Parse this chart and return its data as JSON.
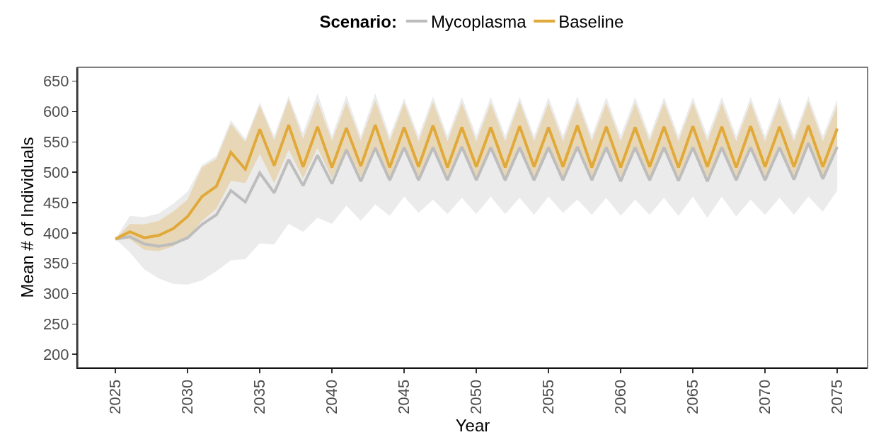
{
  "chart_data": {
    "type": "line",
    "xlabel": "Year",
    "ylabel": "Mean # of Individuals",
    "legend_title": "Scenario:",
    "legend": "top",
    "x": [
      2025,
      2026,
      2027,
      2028,
      2029,
      2030,
      2031,
      2032,
      2033,
      2034,
      2035,
      2036,
      2037,
      2038,
      2039,
      2040,
      2041,
      2042,
      2043,
      2044,
      2045,
      2046,
      2047,
      2048,
      2049,
      2050,
      2051,
      2052,
      2053,
      2054,
      2055,
      2056,
      2057,
      2058,
      2059,
      2060,
      2061,
      2062,
      2063,
      2064,
      2065,
      2066,
      2067,
      2068,
      2069,
      2070,
      2071,
      2072,
      2073,
      2074,
      2075
    ],
    "series": [
      {
        "name": "Baseline",
        "color": "#e0a93a",
        "values": [
          390,
          402,
          392,
          396,
          407,
          427,
          460,
          477,
          533,
          505,
          571,
          511,
          578,
          509,
          575,
          508,
          573,
          510,
          578,
          508,
          574,
          509,
          577,
          508,
          574,
          509,
          574,
          508,
          576,
          509,
          574,
          509,
          577,
          508,
          575,
          508,
          574,
          509,
          575,
          508,
          576,
          509,
          575,
          508,
          576,
          509,
          575,
          509,
          577,
          509,
          572
        ],
        "lower": [
          390,
          390,
          372,
          370,
          378,
          393,
          420,
          440,
          486,
          482,
          530,
          482,
          537,
          490,
          540,
          490,
          538,
          492,
          541,
          492,
          539,
          492,
          540,
          492,
          539,
          492,
          539,
          492,
          540,
          492,
          539,
          492,
          540,
          492,
          539,
          492,
          539,
          492,
          540,
          492,
          540,
          492,
          539,
          492,
          540,
          492,
          539,
          492,
          541,
          492,
          537
        ],
        "upper": [
          390,
          415,
          414,
          420,
          435,
          455,
          508,
          522,
          580,
          550,
          610,
          553,
          620,
          555,
          617,
          552,
          615,
          552,
          618,
          551,
          614,
          551,
          616,
          551,
          614,
          551,
          614,
          551,
          616,
          551,
          614,
          551,
          616,
          551,
          614,
          551,
          614,
          551,
          615,
          551,
          615,
          551,
          614,
          551,
          615,
          551,
          614,
          551,
          616,
          551,
          610
        ]
      },
      {
        "name": "Mycoplasma",
        "color": "#bdbdbd",
        "values": [
          390,
          394,
          382,
          378,
          382,
          392,
          414,
          430,
          470,
          451,
          499,
          466,
          521,
          478,
          528,
          481,
          537,
          485,
          540,
          487,
          541,
          487,
          541,
          487,
          542,
          487,
          541,
          487,
          541,
          487,
          541,
          487,
          542,
          487,
          541,
          485,
          541,
          487,
          541,
          486,
          541,
          485,
          541,
          487,
          541,
          487,
          541,
          488,
          548,
          489,
          542
        ],
        "lower": [
          390,
          368,
          340,
          325,
          316,
          315,
          322,
          337,
          355,
          357,
          383,
          381,
          415,
          402,
          425,
          415,
          445,
          420,
          447,
          428,
          460,
          433,
          455,
          431,
          458,
          431,
          460,
          431,
          458,
          430,
          460,
          433,
          455,
          430,
          458,
          428,
          455,
          430,
          458,
          428,
          460,
          425,
          460,
          427,
          455,
          430,
          458,
          430,
          460,
          435,
          470
        ],
        "upper": [
          390,
          428,
          426,
          432,
          448,
          468,
          512,
          527,
          586,
          555,
          615,
          560,
          626,
          565,
          630,
          560,
          627,
          560,
          630,
          560,
          622,
          560,
          625,
          560,
          624,
          560,
          624,
          560,
          624,
          560,
          624,
          560,
          625,
          560,
          624,
          560,
          624,
          560,
          624,
          560,
          624,
          560,
          624,
          560,
          624,
          560,
          624,
          560,
          625,
          560,
          620
        ]
      }
    ],
    "xlim": [
      2022.4,
      2077.1
    ],
    "xticks": [
      2025,
      2030,
      2035,
      2040,
      2045,
      2050,
      2055,
      2060,
      2065,
      2070,
      2075
    ],
    "ylim": [
      178,
      673
    ],
    "yticks": [
      200,
      250,
      300,
      350,
      400,
      450,
      500,
      550,
      600,
      650
    ],
    "grid": false,
    "line_style": "solid",
    "marker": "none"
  }
}
